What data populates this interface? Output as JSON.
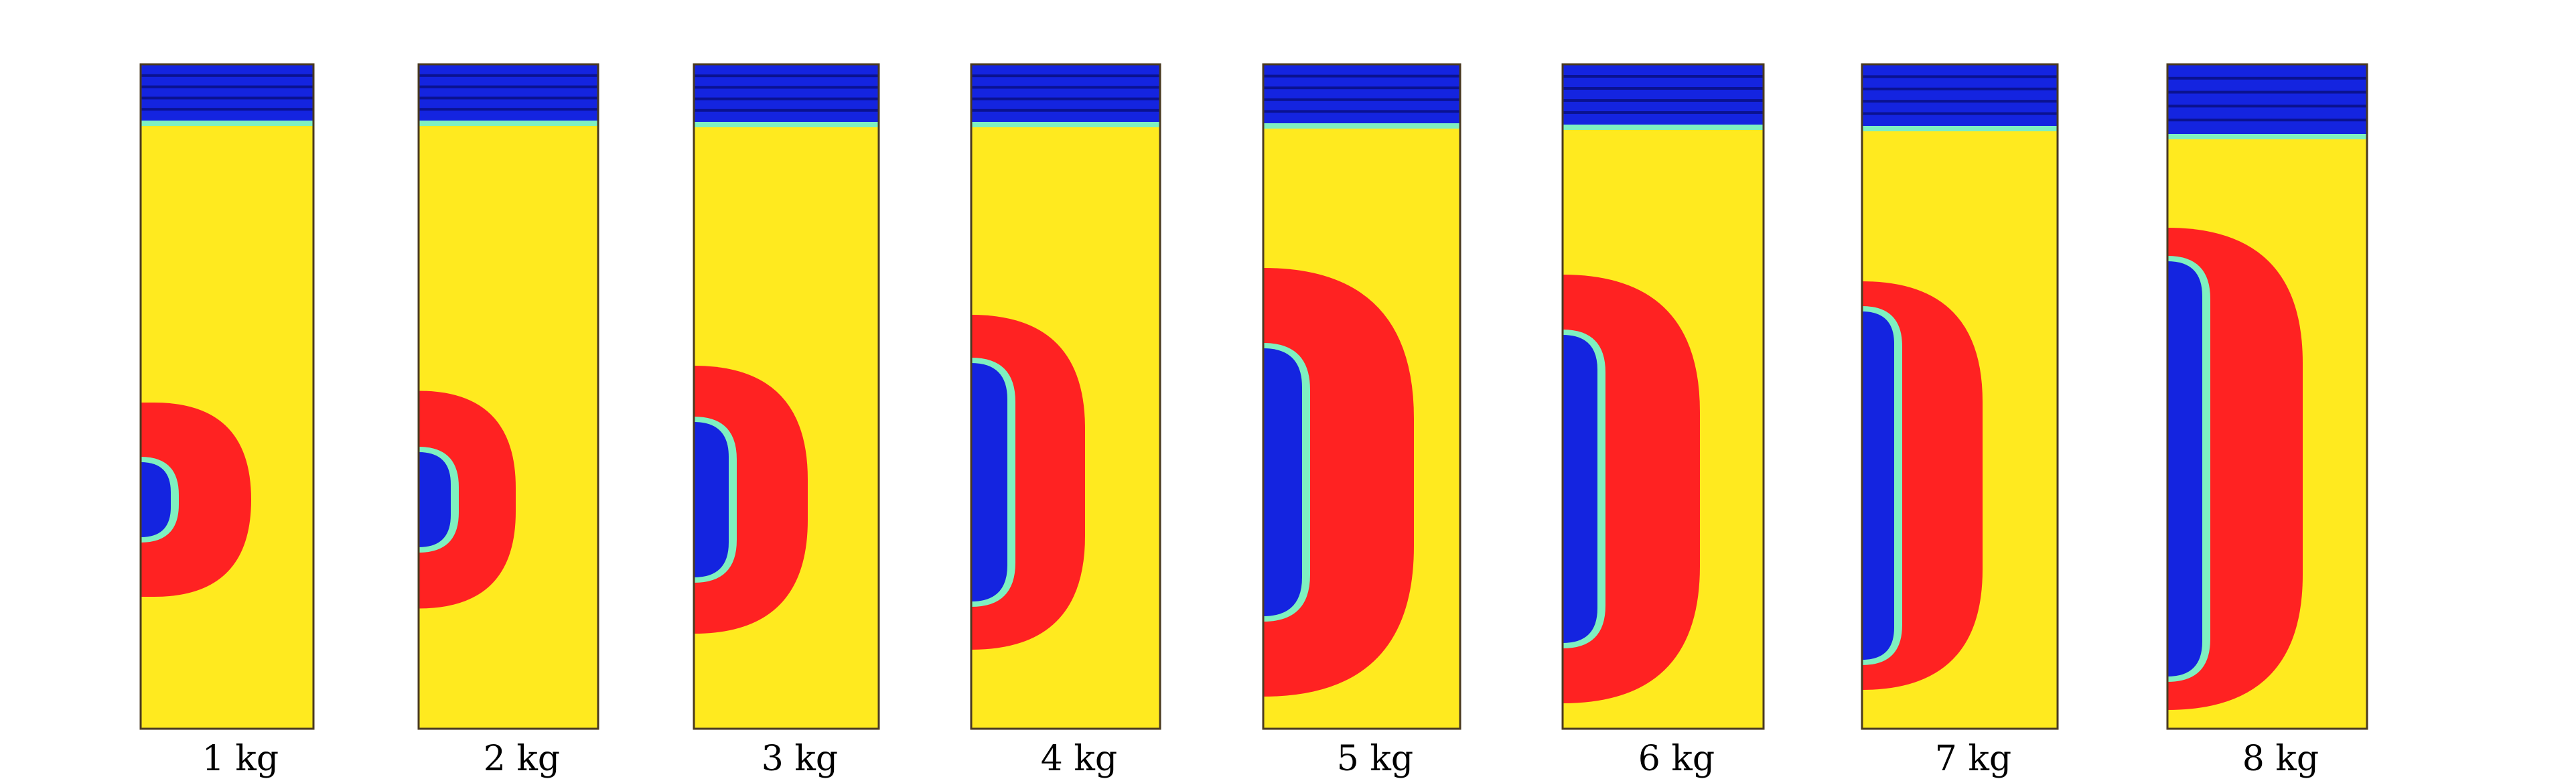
{
  "figure": {
    "colors": {
      "background_material": "#ffea1f",
      "damage_zone": "#ff2222",
      "cavity": "#1424e0",
      "cavity_edge": "#7ff0c0",
      "overburden": "#1424e0",
      "overburden_stripe": "#0a1290",
      "frame": "#4a3a20"
    },
    "panels": [
      {
        "label": "1 kg"
      },
      {
        "label": "2 kg"
      },
      {
        "label": "3 kg"
      },
      {
        "label": "4 kg"
      },
      {
        "label": "5 kg"
      },
      {
        "label": "6 kg"
      },
      {
        "label": "7 kg"
      },
      {
        "label": "8 kg"
      }
    ]
  }
}
